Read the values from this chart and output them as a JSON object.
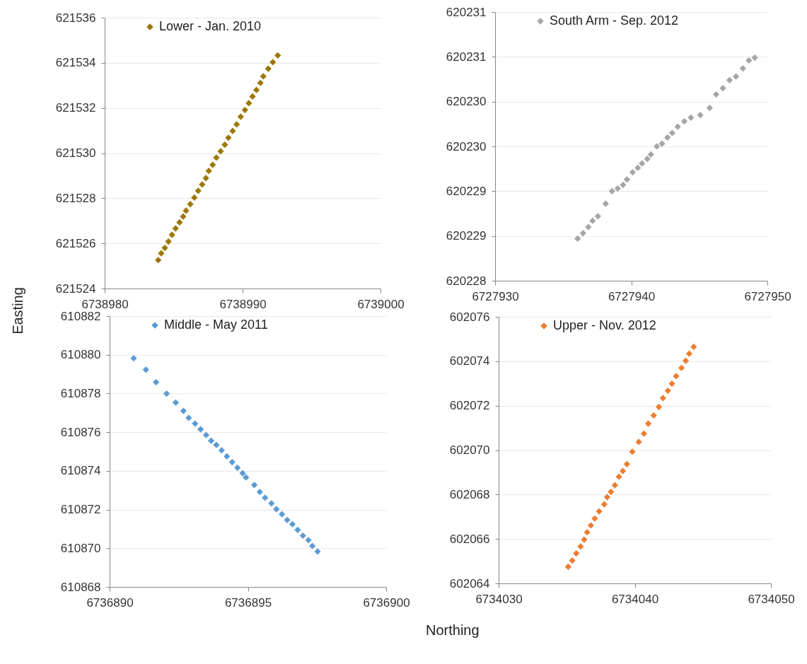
{
  "chart_data": [
    {
      "type": "scatter",
      "ylabel": "Easting",
      "marker": "diamond",
      "grid": "y",
      "legend": "top left",
      "xlim": [
        6738980,
        6739000
      ],
      "xticks": [
        6738980,
        6738990,
        6739000
      ],
      "ylim": [
        621524,
        621536
      ],
      "yticks": [
        621524,
        621526,
        621528,
        621530,
        621532,
        621534,
        621536
      ],
      "series": [
        {
          "name": "Lower - Jan. 2010",
          "color": "#9c7700",
          "x": [
            6738983.88,
            6738984.1,
            6738984.36,
            6738984.62,
            6738984.88,
            6738985.14,
            6738985.43,
            6738985.69,
            6738985.9,
            6738986.21,
            6738986.5,
            6738986.78,
            6738987.07,
            6738987.34,
            6738987.55,
            6738987.83,
            6738988.1,
            6738988.41,
            6738988.71,
            6738988.97,
            6738989.28,
            6738989.57,
            6738989.86,
            6738990.17,
            6738990.45,
            6738990.72,
            6738991,
            6738991.29,
            6738991.5,
            6738991.86,
            6738992.19,
            6738992.55
          ],
          "values": [
            621525.26,
            621525.56,
            621525.8,
            621526.08,
            621526.38,
            621526.66,
            621526.93,
            621527.19,
            621527.45,
            621527.74,
            621528.03,
            621528.33,
            621528.61,
            621528.89,
            621529.21,
            621529.48,
            621529.8,
            621530.08,
            621530.37,
            621530.68,
            621530.98,
            621531.27,
            621531.61,
            621531.91,
            621532.21,
            621532.51,
            621532.8,
            621533.11,
            621533.4,
            621533.74,
            621534.03,
            621534.33
          ]
        }
      ]
    },
    {
      "type": "scatter",
      "marker": "diamond",
      "grid": "y",
      "legend": "top left",
      "xlim": [
        6727930,
        6727950
      ],
      "xticks": [
        6727930,
        6727940,
        6727950
      ],
      "ylim": [
        620228,
        620231
      ],
      "yticks": [
        620228,
        {
          "value": 620228.5,
          "label": "620229"
        },
        620229,
        {
          "value": 620229.5,
          "label": "620230"
        },
        620230,
        {
          "value": 620230.5,
          "label": "620231"
        },
        620231
      ],
      "series": [
        {
          "name": "South Arm - Sep. 2012",
          "color": "#a5a5a5",
          "x": [
            6727936.06,
            6727936.46,
            6727936.85,
            6727937.16,
            6727937.55,
            6727938.12,
            6727938.59,
            6727939,
            6727939.4,
            6727939.69,
            6727940.1,
            6727940.48,
            6727940.79,
            6727941.18,
            6727941.44,
            6727941.88,
            6727942.26,
            6727942.66,
            6727943.01,
            6727943.41,
            6727943.9,
            6727944.38,
            6727945.07,
            6727945.76,
            6727946.24,
            6727946.73,
            6727947.22,
            6727947.69,
            6727948.2,
            6727948.64,
            6727949.07
          ],
          "values": [
            620228.47,
            620228.53,
            620228.6,
            620228.67,
            620228.72,
            620228.86,
            620229,
            620229.03,
            620229.07,
            620229.13,
            620229.21,
            620229.26,
            620229.31,
            620229.36,
            620229.41,
            620229.5,
            620229.53,
            620229.6,
            620229.65,
            620229.72,
            620229.78,
            620229.82,
            620229.85,
            620229.93,
            620230.08,
            620230.15,
            620230.24,
            620230.28,
            620230.37,
            620230.46,
            620230.49
          ]
        }
      ]
    },
    {
      "type": "scatter",
      "marker": "diamond",
      "grid": "y",
      "legend": "top left",
      "xlim": [
        6736890,
        6736900
      ],
      "xticks": [
        6736890,
        6736895,
        6736900
      ],
      "ylim": [
        610868,
        610882
      ],
      "yticks": [
        610868,
        610870,
        610872,
        610874,
        610876,
        610878,
        610880,
        610882
      ],
      "series": [
        {
          "name": "Middle - May 2011",
          "color": "#5b9bd5",
          "x": [
            6736890.87,
            6736891.31,
            6736891.68,
            6736892.06,
            6736892.39,
            6736892.67,
            6736892.86,
            6736893.09,
            6736893.29,
            6736893.49,
            6736893.67,
            6736893.86,
            6736894.05,
            6736894.24,
            6736894.43,
            6736894.62,
            6736894.81,
            6736894.93,
            6736895.23,
            6736895.43,
            6736895.62,
            6736895.85,
            6736896.03,
            6736896.23,
            6736896.42,
            6736896.61,
            6736896.8,
            6736896.99,
            6736897.19,
            6736897.33,
            6736897.52
          ],
          "values": [
            610879.82,
            610879.23,
            610878.58,
            610877.99,
            610877.53,
            610877.1,
            610876.74,
            610876.44,
            610876.15,
            610875.85,
            610875.56,
            610875.34,
            610875.06,
            610874.75,
            610874.45,
            610874.16,
            610873.88,
            610873.66,
            610873.27,
            610872.91,
            610872.61,
            610872.32,
            610872.02,
            610871.76,
            610871.46,
            610871.24,
            610870.95,
            610870.65,
            610870.42,
            610870.12,
            610869.83
          ]
        }
      ]
    },
    {
      "type": "scatter",
      "xlabel": "Northing",
      "marker": "diamond",
      "grid": "y",
      "legend": "top left",
      "xlim": [
        6734030,
        6734050
      ],
      "xticks": [
        6734030,
        6734040,
        6734050
      ],
      "ylim": [
        602064,
        602076
      ],
      "yticks": [
        602064,
        602066,
        602068,
        602070,
        602072,
        602074,
        602076
      ],
      "series": [
        {
          "name": "Upper - Nov. 2012",
          "color": "#ed7d31",
          "x": [
            6734035.11,
            6734035.41,
            6734035.7,
            6734036.02,
            6734036.28,
            6734036.5,
            6734036.77,
            6734037.06,
            6734037.38,
            6734037.76,
            6734037.97,
            6734038.25,
            6734038.54,
            6734038.84,
            6734039.12,
            6734039.42,
            6734039.82,
            6734040.29,
            6734040.67,
            6734040.99,
            6734041.39,
            6734041.77,
            6734042.07,
            6734042.43,
            6734042.73,
            6734043.04,
            6734043.43,
            6734043.74,
            6734044,
            6734044.33
          ],
          "values": [
            602064.75,
            602065.03,
            602065.35,
            602065.66,
            602065.97,
            602066.3,
            602066.61,
            602066.92,
            602067.24,
            602067.56,
            602067.88,
            602068.12,
            602068.42,
            602068.8,
            602069.06,
            602069.37,
            602069.93,
            602070.37,
            602070.74,
            602071.19,
            602071.56,
            602071.94,
            602072.34,
            602072.67,
            602072.99,
            602073.33,
            602073.7,
            602074.02,
            602074.34,
            602074.65
          ]
        }
      ]
    }
  ]
}
